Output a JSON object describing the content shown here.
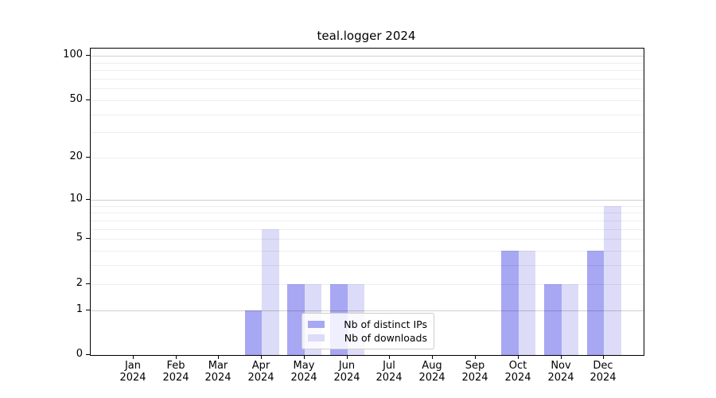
{
  "chart_data": {
    "type": "bar",
    "title": "teal.logger 2024",
    "categories": [
      "Jan",
      "Feb",
      "Mar",
      "Apr",
      "May",
      "Jun",
      "Jul",
      "Aug",
      "Sep",
      "Oct",
      "Nov",
      "Dec"
    ],
    "category_sublabel": "2024",
    "series": [
      {
        "name": "Nb of distinct IPs",
        "color": "#a7a7f3",
        "values": [
          0,
          0,
          0,
          1,
          2,
          2,
          0,
          0,
          0,
          4,
          2,
          4
        ]
      },
      {
        "name": "Nb of downloads",
        "color": "#dcdcf8",
        "values": [
          0,
          0,
          0,
          6,
          2,
          2,
          0,
          0,
          0,
          4,
          2,
          9
        ]
      }
    ],
    "yscale": "log1p",
    "ylim": [
      0,
      112
    ],
    "ytick_labels": [
      0,
      1,
      2,
      5,
      10,
      20,
      50,
      100
    ],
    "major_gridlines": [
      1,
      10,
      100
    ],
    "minor_gridlines": [
      2,
      3,
      4,
      5,
      6,
      7,
      8,
      9,
      20,
      30,
      40,
      50,
      60,
      70,
      80,
      90
    ],
    "grid": true,
    "legend_position": "inside-bottom-center",
    "xlabel": "",
    "ylabel": ""
  },
  "colors": {
    "background": "#ffffff",
    "axis": "#000000",
    "text": "#000000",
    "bar_distinct_ips": "#a7a7f3",
    "bar_downloads": "#dcdcf8",
    "major_gridline": "#d0d0d0",
    "minor_gridline": "#efefef",
    "legend_border": "#cccccc"
  }
}
